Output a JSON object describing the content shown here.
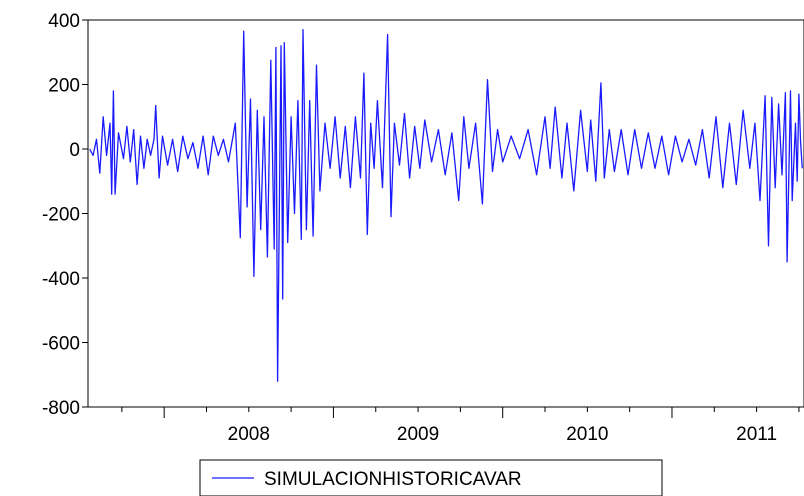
{
  "chart_data": {
    "type": "line",
    "title": "",
    "xlabel": "",
    "ylabel": "",
    "ylim": [
      -800,
      400
    ],
    "yticks": [
      400,
      200,
      0,
      -200,
      -400,
      -600,
      -800
    ],
    "ytick_labels": [
      "400",
      "200",
      "0",
      "-200",
      "-400",
      "-600",
      "-800"
    ],
    "xlim": [
      2007.55,
      2011.78
    ],
    "xtick_labels": [
      "2008",
      "2009",
      "2010",
      "2011"
    ],
    "xtick_label_positions": [
      2008.5,
      2009.5,
      2010.5,
      2011.5
    ],
    "grid": false,
    "legend": "bottom-center",
    "line_color": "#1a1aff",
    "series": [
      {
        "name": "SIMULACIONHISTORICAVAR",
        "points": [
          [
            2007.56,
            0
          ],
          [
            2007.58,
            -20
          ],
          [
            2007.6,
            30
          ],
          [
            2007.62,
            -75
          ],
          [
            2007.64,
            100
          ],
          [
            2007.66,
            -20
          ],
          [
            2007.68,
            80
          ],
          [
            2007.69,
            -140
          ],
          [
            2007.7,
            180
          ],
          [
            2007.71,
            -140
          ],
          [
            2007.73,
            50
          ],
          [
            2007.76,
            -30
          ],
          [
            2007.78,
            70
          ],
          [
            2007.8,
            -40
          ],
          [
            2007.82,
            60
          ],
          [
            2007.84,
            -110
          ],
          [
            2007.86,
            40
          ],
          [
            2007.88,
            -60
          ],
          [
            2007.9,
            30
          ],
          [
            2007.92,
            -20
          ],
          [
            2007.94,
            30
          ],
          [
            2007.95,
            135
          ],
          [
            2007.97,
            -90
          ],
          [
            2007.99,
            40
          ],
          [
            2008.02,
            -50
          ],
          [
            2008.05,
            30
          ],
          [
            2008.08,
            -70
          ],
          [
            2008.11,
            40
          ],
          [
            2008.14,
            -30
          ],
          [
            2008.17,
            20
          ],
          [
            2008.2,
            -60
          ],
          [
            2008.23,
            40
          ],
          [
            2008.26,
            -80
          ],
          [
            2008.29,
            40
          ],
          [
            2008.32,
            -20
          ],
          [
            2008.35,
            30
          ],
          [
            2008.38,
            -40
          ],
          [
            2008.42,
            80
          ],
          [
            2008.45,
            -275
          ],
          [
            2008.47,
            365
          ],
          [
            2008.49,
            -180
          ],
          [
            2008.51,
            155
          ],
          [
            2008.53,
            -395
          ],
          [
            2008.55,
            120
          ],
          [
            2008.57,
            -250
          ],
          [
            2008.59,
            100
          ],
          [
            2008.61,
            -335
          ],
          [
            2008.63,
            275
          ],
          [
            2008.65,
            -310
          ],
          [
            2008.66,
            315
          ],
          [
            2008.67,
            -720
          ],
          [
            2008.69,
            320
          ],
          [
            2008.7,
            -465
          ],
          [
            2008.71,
            330
          ],
          [
            2008.73,
            -290
          ],
          [
            2008.75,
            100
          ],
          [
            2008.77,
            -200
          ],
          [
            2008.79,
            150
          ],
          [
            2008.81,
            -280
          ],
          [
            2008.82,
            370
          ],
          [
            2008.84,
            -250
          ],
          [
            2008.86,
            150
          ],
          [
            2008.88,
            -270
          ],
          [
            2008.9,
            260
          ],
          [
            2008.92,
            -130
          ],
          [
            2008.95,
            80
          ],
          [
            2008.98,
            -60
          ],
          [
            2009.01,
            100
          ],
          [
            2009.04,
            -90
          ],
          [
            2009.07,
            70
          ],
          [
            2009.1,
            -120
          ],
          [
            2009.13,
            100
          ],
          [
            2009.16,
            -90
          ],
          [
            2009.18,
            235
          ],
          [
            2009.2,
            -265
          ],
          [
            2009.22,
            80
          ],
          [
            2009.24,
            -60
          ],
          [
            2009.26,
            150
          ],
          [
            2009.29,
            -120
          ],
          [
            2009.32,
            355
          ],
          [
            2009.34,
            -210
          ],
          [
            2009.36,
            80
          ],
          [
            2009.39,
            -50
          ],
          [
            2009.42,
            110
          ],
          [
            2009.45,
            -90
          ],
          [
            2009.48,
            70
          ],
          [
            2009.51,
            -60
          ],
          [
            2009.54,
            90
          ],
          [
            2009.58,
            -40
          ],
          [
            2009.62,
            60
          ],
          [
            2009.66,
            -80
          ],
          [
            2009.7,
            50
          ],
          [
            2009.74,
            -160
          ],
          [
            2009.77,
            100
          ],
          [
            2009.8,
            -60
          ],
          [
            2009.84,
            80
          ],
          [
            2009.88,
            -170
          ],
          [
            2009.91,
            215
          ],
          [
            2009.94,
            -70
          ],
          [
            2009.97,
            60
          ],
          [
            2010.0,
            -40
          ],
          [
            2010.05,
            40
          ],
          [
            2010.1,
            -30
          ],
          [
            2010.15,
            60
          ],
          [
            2010.2,
            -80
          ],
          [
            2010.25,
            100
          ],
          [
            2010.28,
            -60
          ],
          [
            2010.31,
            130
          ],
          [
            2010.35,
            -90
          ],
          [
            2010.38,
            80
          ],
          [
            2010.42,
            -130
          ],
          [
            2010.46,
            120
          ],
          [
            2010.5,
            -70
          ],
          [
            2010.52,
            90
          ],
          [
            2010.55,
            -100
          ],
          [
            2010.58,
            205
          ],
          [
            2010.6,
            -90
          ],
          [
            2010.63,
            60
          ],
          [
            2010.66,
            -70
          ],
          [
            2010.7,
            60
          ],
          [
            2010.74,
            -80
          ],
          [
            2010.78,
            60
          ],
          [
            2010.82,
            -60
          ],
          [
            2010.86,
            50
          ],
          [
            2010.9,
            -60
          ],
          [
            2010.94,
            40
          ],
          [
            2010.98,
            -80
          ],
          [
            2011.02,
            40
          ],
          [
            2011.06,
            -40
          ],
          [
            2011.1,
            30
          ],
          [
            2011.14,
            -50
          ],
          [
            2011.18,
            60
          ],
          [
            2011.22,
            -90
          ],
          [
            2011.26,
            100
          ],
          [
            2011.3,
            -120
          ],
          [
            2011.34,
            80
          ],
          [
            2011.38,
            -110
          ],
          [
            2011.42,
            120
          ],
          [
            2011.46,
            -60
          ],
          [
            2011.49,
            80
          ],
          [
            2011.52,
            -160
          ],
          [
            2011.55,
            165
          ],
          [
            2011.57,
            -300
          ],
          [
            2011.59,
            160
          ],
          [
            2011.61,
            -120
          ],
          [
            2011.63,
            140
          ],
          [
            2011.65,
            -80
          ],
          [
            2011.67,
            175
          ],
          [
            2011.68,
            -350
          ],
          [
            2011.7,
            180
          ],
          [
            2011.71,
            -160
          ],
          [
            2011.73,
            80
          ],
          [
            2011.74,
            -100
          ],
          [
            2011.75,
            170
          ],
          [
            2011.76,
            20
          ],
          [
            2011.77,
            -60
          ]
        ]
      }
    ]
  }
}
